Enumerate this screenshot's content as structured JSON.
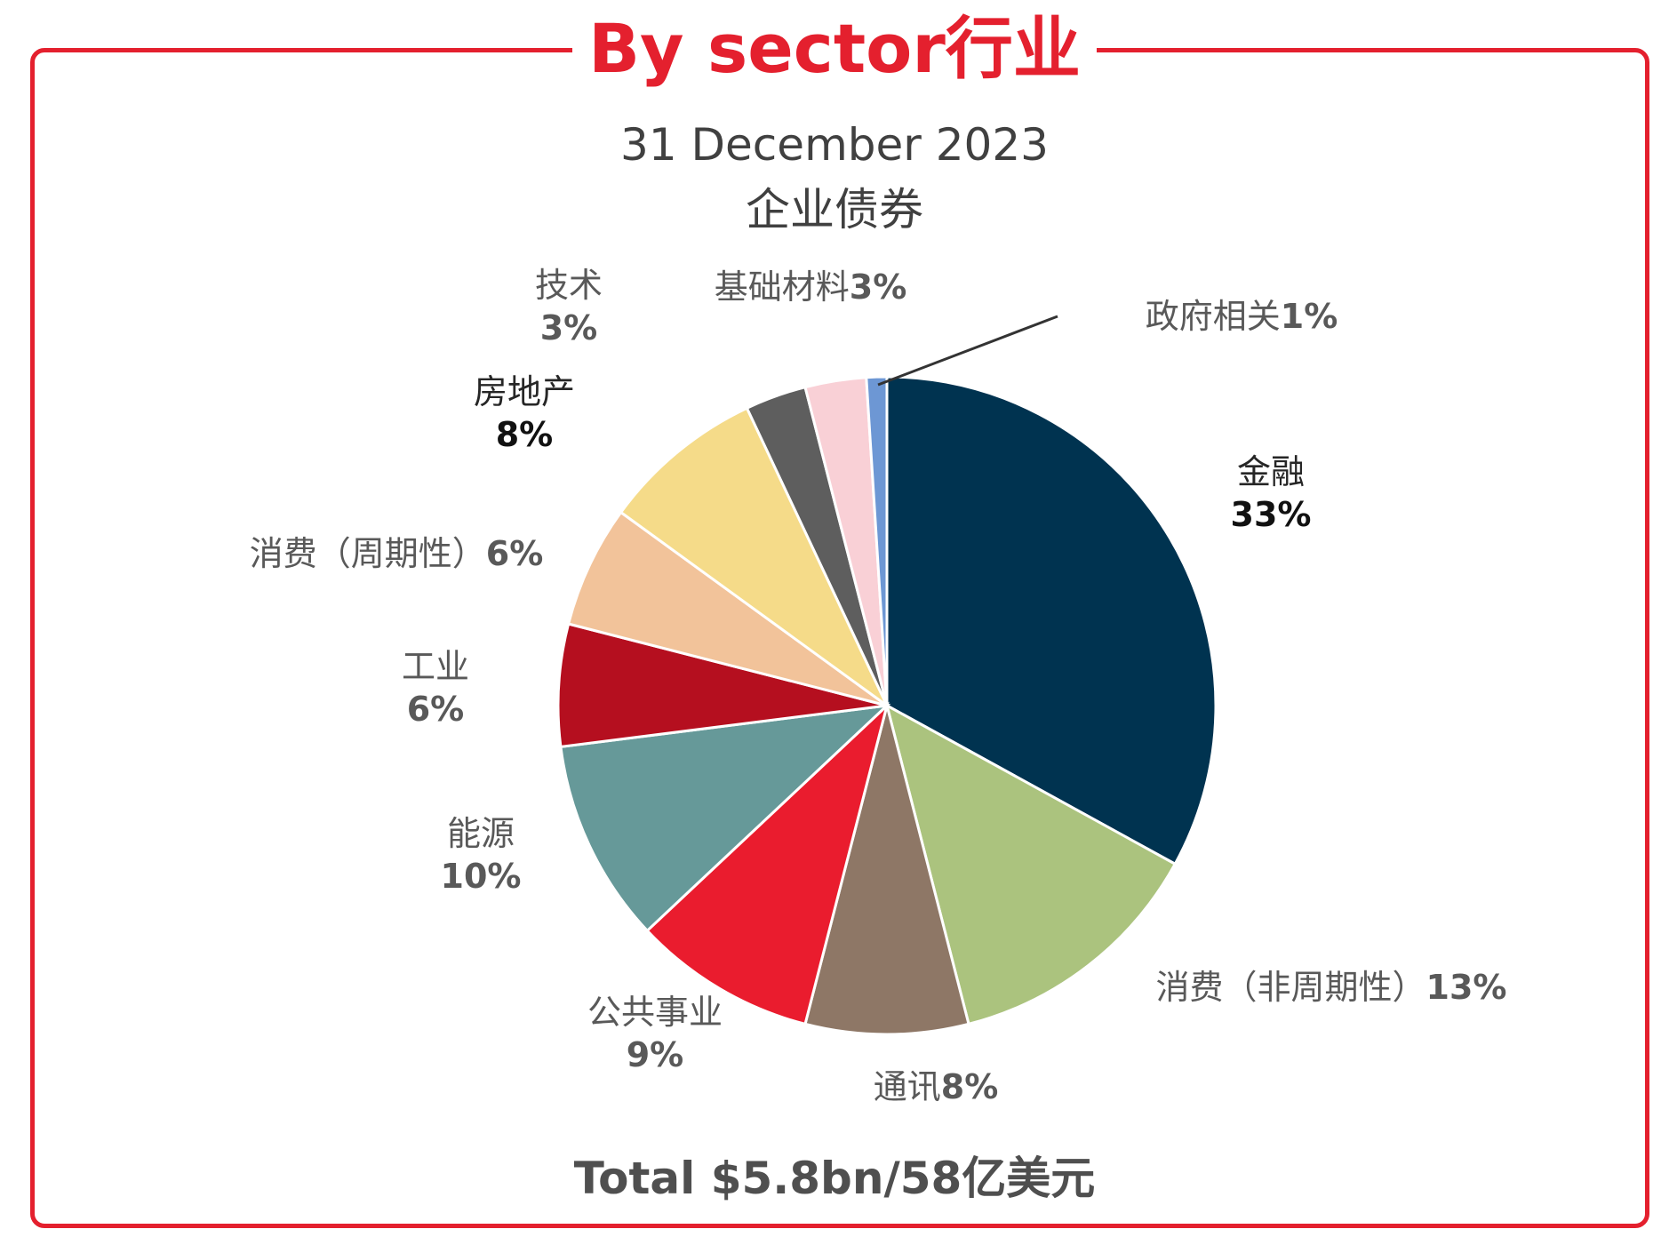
{
  "header": {
    "title": "By sector行业"
  },
  "chart_data": {
    "type": "pie",
    "title": "31 December 2023",
    "subtitle": "企业债券",
    "total_text": "Total $5.8bn/58亿美元",
    "slices": [
      {
        "name": "金融",
        "value": 33,
        "label": "33%",
        "color": "#003350"
      },
      {
        "name": "消费（非周期性）",
        "value": 13,
        "label": "13%",
        "color": "#abc37e"
      },
      {
        "name": "通讯",
        "value": 8,
        "label": "8%",
        "color": "#8e7766"
      },
      {
        "name": "公共事业",
        "value": 9,
        "label": "9%",
        "color": "#ea1c2e"
      },
      {
        "name": "能源",
        "value": 10,
        "label": "10%",
        "color": "#669999"
      },
      {
        "name": "工业",
        "value": 6,
        "label": "6%",
        "color": "#b50f1f"
      },
      {
        "name": "消费（周期性）",
        "value": 6,
        "label": "6%",
        "color": "#f2c39a"
      },
      {
        "name": "房地产",
        "value": 8,
        "label": "8%",
        "color": "#f5db89"
      },
      {
        "name": "技术",
        "value": 3,
        "label": "3%",
        "color": "#5e5e5e"
      },
      {
        "name": "基础材料",
        "value": 3,
        "label": "3%",
        "color": "#f9d0d6"
      },
      {
        "name": "政府相关",
        "value": 1,
        "label": "1%",
        "color": "#6d97d4"
      }
    ]
  }
}
